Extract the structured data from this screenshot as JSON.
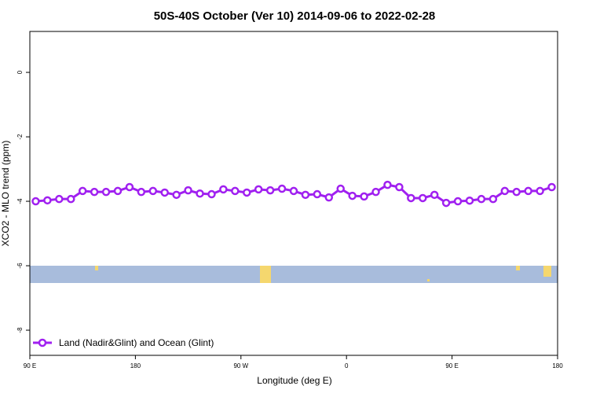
{
  "chart_data": {
    "type": "line",
    "title": "50S-40S October (Ver 10)   2014-09-06 to 2022-02-28",
    "x_label": "Longitude (deg E)",
    "y_label": "XCO2 - MLO trend (ppm)",
    "x": [
      95,
      105,
      115,
      125,
      135,
      145,
      155,
      165,
      175,
      185,
      195,
      205,
      215,
      225,
      235,
      245,
      255,
      265,
      275,
      285,
      295,
      305,
      315,
      325,
      335,
      345,
      355,
      365,
      375,
      385,
      395,
      405,
      415,
      425,
      435,
      445,
      455,
      465,
      475,
      485,
      495,
      505,
      515,
      525,
      535
    ],
    "series": [
      {
        "name": "Land (Nadir&Glint) and Ocean (Glint)",
        "color": "#a020f0",
        "values": [
          -4.0,
          -3.97,
          -3.93,
          -3.93,
          -3.68,
          -3.71,
          -3.71,
          -3.68,
          -3.56,
          -3.71,
          -3.68,
          -3.73,
          -3.8,
          -3.66,
          -3.76,
          -3.78,
          -3.63,
          -3.68,
          -3.73,
          -3.63,
          -3.66,
          -3.61,
          -3.68,
          -3.8,
          -3.78,
          -3.88,
          -3.61,
          -3.83,
          -3.85,
          -3.71,
          -3.49,
          -3.56,
          -3.9,
          -3.9,
          -3.8,
          -4.05,
          -4.0,
          -3.98,
          -3.93,
          -3.93,
          -3.68,
          -3.71,
          -3.68,
          -3.68,
          -3.56
        ]
      }
    ],
    "xlim": [
      90,
      540
    ],
    "xticks": [
      {
        "value": 90,
        "label": "90 E"
      },
      {
        "value": 180,
        "label": "180"
      },
      {
        "value": 270,
        "label": "90 W"
      },
      {
        "value": 360,
        "label": "0"
      },
      {
        "value": 450,
        "label": "90 E"
      },
      {
        "value": 540,
        "label": "180"
      }
    ],
    "ylim": [
      -8.78,
      1.27
    ],
    "yticks": [
      0,
      -2,
      -4,
      -6,
      -8
    ],
    "legend": "bottom-left"
  }
}
